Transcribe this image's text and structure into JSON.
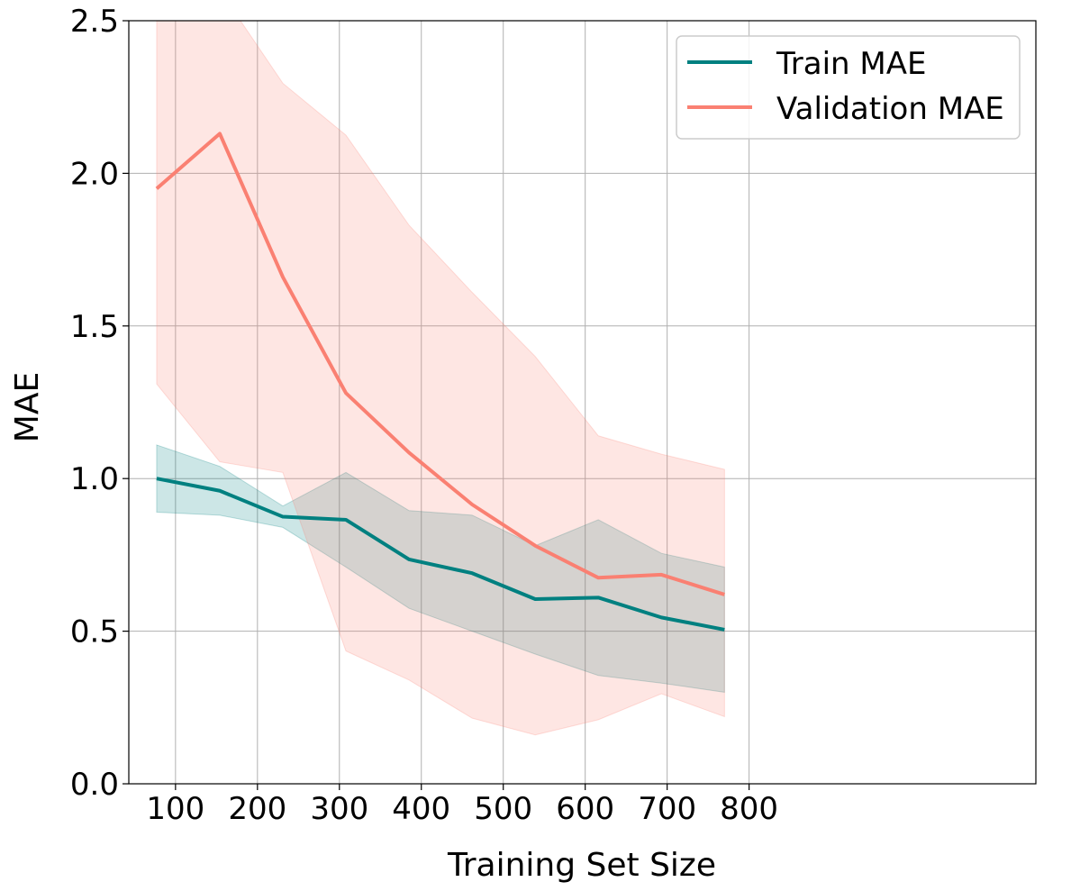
{
  "chart_data": {
    "type": "line",
    "title": "",
    "xlabel": "Training Set Size",
    "ylabel": "MAE",
    "xlim": [
      43,
      1150
    ],
    "ylim": [
      0,
      2.5
    ],
    "xticks": [
      100,
      200,
      300,
      400,
      500,
      600,
      700,
      800
    ],
    "yticks": [
      0.0,
      0.5,
      1.0,
      1.5,
      2.0,
      2.5
    ],
    "ytick_labels": [
      "0.0",
      "0.5",
      "1.0",
      "1.5",
      "2.0",
      "2.5"
    ],
    "grid": true,
    "legend_position": "top-right",
    "x": [
      77,
      154,
      231,
      308,
      385,
      462,
      539,
      616,
      693,
      770
    ],
    "series": [
      {
        "name": "Train MAE",
        "color": "#008080",
        "values": [
          1.0,
          0.96,
          0.875,
          0.865,
          0.735,
          0.69,
          0.605,
          0.61,
          0.545,
          0.505
        ],
        "lower": [
          0.89,
          0.88,
          0.84,
          0.71,
          0.575,
          0.5,
          0.425,
          0.355,
          0.33,
          0.3
        ],
        "upper": [
          1.11,
          1.04,
          0.91,
          1.02,
          0.895,
          0.88,
          0.78,
          0.865,
          0.755,
          0.71
        ]
      },
      {
        "name": "Validation MAE",
        "color": "#FA8072",
        "values": [
          1.95,
          2.13,
          1.66,
          1.28,
          1.085,
          0.915,
          0.78,
          0.675,
          0.685,
          0.62
        ],
        "lower": [
          1.31,
          1.055,
          1.02,
          0.435,
          0.34,
          0.215,
          0.16,
          0.21,
          0.295,
          0.22
        ],
        "upper": [
          2.6,
          2.6,
          2.295,
          2.125,
          1.83,
          1.61,
          1.4,
          1.14,
          1.08,
          1.03
        ]
      }
    ]
  }
}
